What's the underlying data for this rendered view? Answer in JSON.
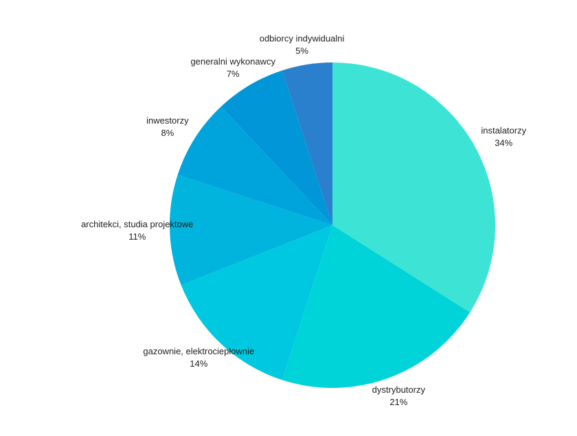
{
  "chart_data": {
    "type": "pie",
    "categories": [
      "instalatorzy",
      "dystrybutorzy",
      "gazownie, elektrociepłownie",
      "architekci, studia projektowe",
      "inwestorzy",
      "generalni wykonawcy",
      "odbiorcy indywidualni"
    ],
    "values": [
      34,
      21,
      14,
      11,
      8,
      7,
      5
    ],
    "value_labels": [
      "34%",
      "21%",
      "14%",
      "11%",
      "8%",
      "7%",
      "5%"
    ],
    "colors": [
      "#3de3d5",
      "#00d4d8",
      "#00c8e0",
      "#00b4de",
      "#00a4dc",
      "#0096d8",
      "#2a80cc"
    ]
  }
}
